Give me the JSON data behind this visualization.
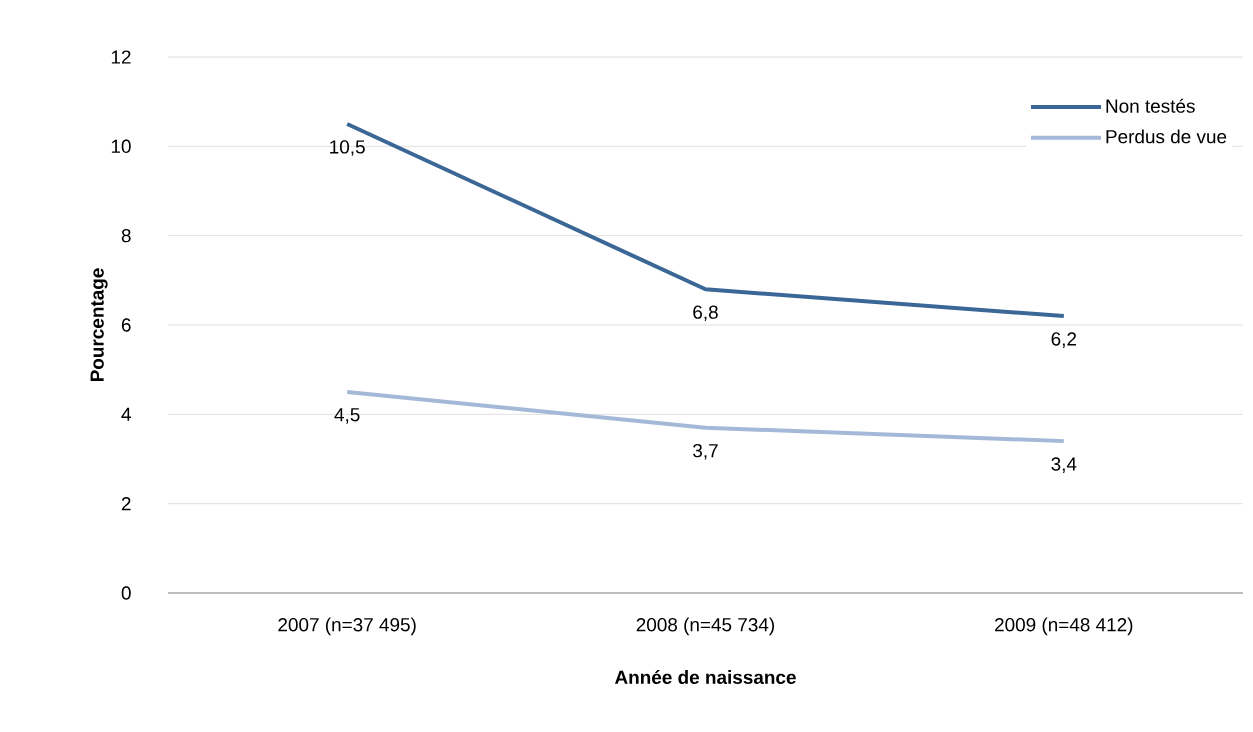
{
  "chart_data": {
    "type": "line",
    "xlabel": "Année de naissance",
    "ylabel": "Pourcentage",
    "categories": [
      "2007 (n=37 495)",
      "2008 (n=45 734)",
      "2009 (n=48 412)"
    ],
    "series": [
      {
        "name": "Non testés",
        "color": "#3b6796",
        "values": [
          10.5,
          6.8,
          6.2
        ],
        "value_labels": [
          "10,5",
          "6,8",
          "6,2"
        ]
      },
      {
        "name": "Perdus de vue",
        "color": "#a4b9d8",
        "values": [
          4.5,
          3.7,
          3.4
        ],
        "value_labels": [
          "4,5",
          "3,7",
          "3,4"
        ]
      }
    ],
    "ylim": [
      0,
      12
    ],
    "yticks": [
      0,
      2,
      4,
      6,
      8,
      10,
      12
    ],
    "grid": "y",
    "legend": "top right",
    "marker": "none",
    "line_style": "solid"
  }
}
